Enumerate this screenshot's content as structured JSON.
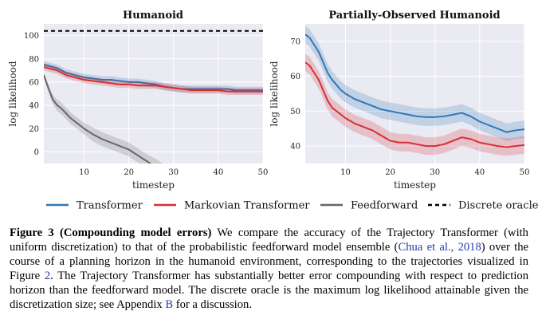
{
  "colors": {
    "transformer": "#2f77b4",
    "markovian": "#d62f34",
    "feedforward": "#666666",
    "oracle": "#000000",
    "panel_bg": "#eaeaf2",
    "grid": "#ffffff",
    "citation_link": "#1f3fa8"
  },
  "legend": [
    {
      "label": "Transformer",
      "style": "solid",
      "color": "#2f77b4"
    },
    {
      "label": "Markovian Transformer",
      "style": "solid",
      "color": "#d62f34"
    },
    {
      "label": "Feedforward",
      "style": "solid",
      "color": "#666666"
    },
    {
      "label": "Discrete oracle",
      "style": "dashed",
      "color": "#000000"
    }
  ],
  "chart_data": [
    {
      "type": "line",
      "title": "Humanoid",
      "xlabel": "timestep",
      "ylabel": "log likelihood",
      "xlim": [
        1,
        50
      ],
      "ylim": [
        -10,
        110
      ],
      "xticks": [
        10,
        20,
        30,
        40,
        50
      ],
      "yticks": [
        0,
        20,
        40,
        60,
        80,
        100
      ],
      "grid": true,
      "series": [
        {
          "name": "Transformer",
          "x": [
            1,
            2,
            3,
            4,
            5,
            6,
            7,
            8,
            9,
            10,
            12,
            14,
            16,
            18,
            20,
            22,
            24,
            26,
            28,
            30,
            32,
            34,
            36,
            38,
            40,
            42,
            44,
            46,
            48,
            50
          ],
          "y": [
            75,
            74,
            73,
            72,
            70,
            68,
            67,
            66,
            65,
            64,
            63,
            62,
            62,
            61,
            60,
            60,
            59,
            58,
            56,
            55,
            54,
            54,
            54,
            54,
            54,
            54,
            53,
            53,
            53,
            53
          ],
          "band": [
            3,
            3,
            3,
            3,
            3,
            3,
            3,
            3,
            3,
            3,
            3,
            3,
            3,
            3,
            3,
            3,
            3,
            3,
            3,
            3,
            3,
            3,
            3,
            3,
            3,
            3,
            3,
            3,
            3,
            3
          ]
        },
        {
          "name": "Markovian Transformer",
          "x": [
            1,
            2,
            3,
            4,
            5,
            6,
            7,
            8,
            9,
            10,
            12,
            14,
            16,
            18,
            20,
            22,
            24,
            26,
            28,
            30,
            32,
            34,
            36,
            38,
            40,
            42,
            44,
            46,
            48,
            50
          ],
          "y": [
            73,
            72,
            71,
            70,
            68,
            66,
            65,
            64,
            63,
            62,
            61,
            60,
            59,
            58,
            58,
            57,
            57,
            57,
            56,
            55,
            54,
            53,
            53,
            53,
            53,
            52,
            52,
            52,
            52,
            52
          ],
          "band": [
            3,
            3,
            3,
            3,
            3,
            3,
            3,
            3,
            3,
            3,
            3,
            3,
            3,
            3,
            3,
            3,
            3,
            3,
            3,
            3,
            3,
            3,
            3,
            3,
            3,
            3,
            3,
            3,
            3,
            3
          ]
        },
        {
          "name": "Feedforward",
          "x": [
            1,
            2,
            3,
            4,
            5,
            6,
            7,
            8,
            10,
            12,
            14,
            16,
            18,
            20,
            22,
            24,
            26,
            28,
            30
          ],
          "y": [
            66,
            55,
            45,
            40,
            37,
            33,
            29,
            26,
            20,
            15,
            11,
            8,
            5,
            2,
            -3,
            -8,
            -13,
            -18,
            -24
          ],
          "band": [
            2,
            3,
            4,
            5,
            5,
            5,
            5,
            5,
            5,
            6,
            6,
            6,
            6,
            6,
            6,
            6,
            7,
            7,
            7
          ]
        },
        {
          "name": "Discrete oracle",
          "x": [
            1,
            50
          ],
          "y": [
            104,
            104
          ]
        }
      ]
    },
    {
      "type": "line",
      "title": "Partially-Observed Humanoid",
      "xlabel": "timestep",
      "ylabel": "log likelihood",
      "xlim": [
        1,
        50
      ],
      "ylim": [
        35,
        75
      ],
      "xticks": [
        10,
        20,
        30,
        40,
        50
      ],
      "yticks": [
        40,
        50,
        60,
        70
      ],
      "grid": true,
      "series": [
        {
          "name": "Transformer",
          "x": [
            1,
            2,
            3,
            4,
            5,
            6,
            7,
            8,
            9,
            10,
            12,
            14,
            16,
            18,
            20,
            22,
            24,
            26,
            28,
            30,
            32,
            34,
            36,
            38,
            40,
            42,
            44,
            46,
            48,
            50
          ],
          "y": [
            72,
            71,
            69,
            67,
            64,
            61,
            59,
            57.5,
            56,
            55,
            53.5,
            52.5,
            51.5,
            50.5,
            50,
            49.5,
            49,
            48.5,
            48.3,
            48.3,
            48.5,
            49,
            49.5,
            48.5,
            47,
            46,
            45,
            44,
            44.5,
            44.8
          ],
          "band": [
            2.5,
            2.5,
            2.5,
            2.5,
            2.5,
            2.5,
            2.5,
            2.5,
            2.5,
            2.5,
            2.5,
            2.5,
            2.5,
            2.5,
            2.5,
            2.5,
            2.5,
            2.5,
            2.5,
            2.5,
            2.5,
            2.5,
            2.5,
            2.5,
            2.5,
            2.5,
            2.5,
            2.5,
            2.5,
            2.5
          ]
        },
        {
          "name": "Markovian Transformer",
          "x": [
            1,
            2,
            3,
            4,
            5,
            6,
            7,
            8,
            9,
            10,
            12,
            14,
            16,
            18,
            20,
            22,
            24,
            26,
            28,
            30,
            32,
            34,
            36,
            38,
            40,
            42,
            44,
            46,
            48,
            50
          ],
          "y": [
            64,
            63,
            61,
            59,
            56,
            53,
            51,
            50,
            49,
            48,
            46.5,
            45.5,
            44.5,
            43,
            41.5,
            41,
            41,
            40.5,
            40,
            40,
            40.5,
            41.5,
            42.5,
            42,
            41,
            40.5,
            40,
            39.7,
            40,
            40.3
          ],
          "band": [
            2.5,
            2.5,
            2.5,
            2.5,
            2.5,
            2.5,
            2.5,
            2.5,
            2.5,
            2.5,
            2.5,
            2.5,
            2.5,
            2.5,
            2.5,
            2.5,
            2.5,
            2.5,
            2.5,
            2.5,
            2.5,
            2.5,
            2.5,
            2.5,
            2.5,
            2.5,
            2.5,
            2.5,
            2.5,
            2.5
          ]
        }
      ]
    }
  ],
  "caption": {
    "label": "Figure 3 (Compounding model errors)",
    "text_1": " We compare the accuracy of the Trajectory Transformer (with uniform discretization) to that of the probabilistic feedforward model ensemble (",
    "cite_1": "Chua et al., 2018",
    "text_2": ") over the course of a planning horizon in the humanoid environment, corresponding to the trajectories visualized in Figure ",
    "figure_ref": "2",
    "text_3": ". The Trajectory Transformer has substantially better error compounding with respect to prediction horizon than the feedforward model. The discrete oracle is the maximum log likelihood attainable given the discretization size; see Appendix ",
    "appendix_ref": "B",
    "text_4": " for a discussion."
  }
}
